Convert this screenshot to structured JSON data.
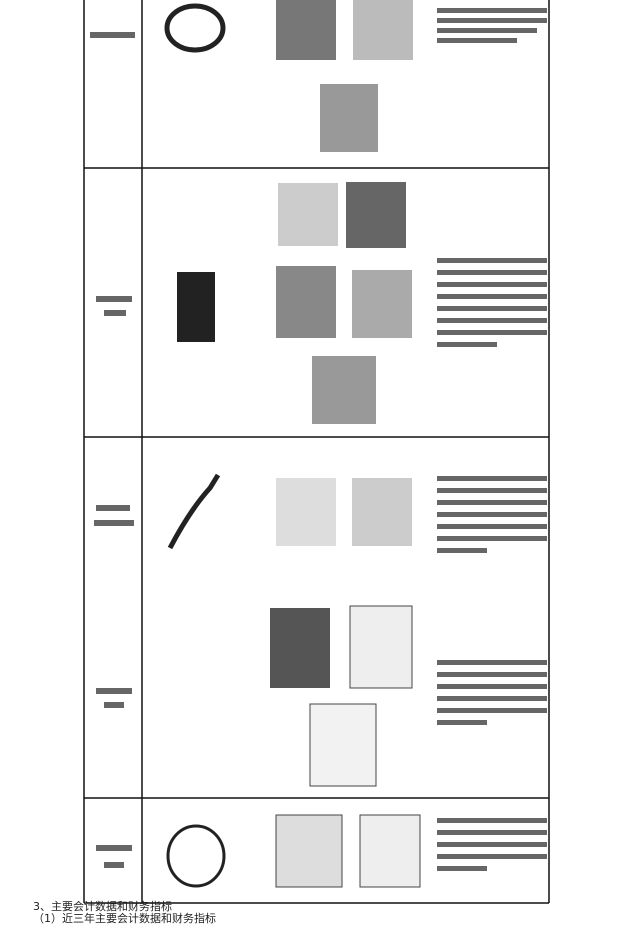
{
  "section": {
    "heading": "3、主要会计数据和财务指标",
    "subheading": "（1）近三年主要会计数据和财务指标"
  }
}
